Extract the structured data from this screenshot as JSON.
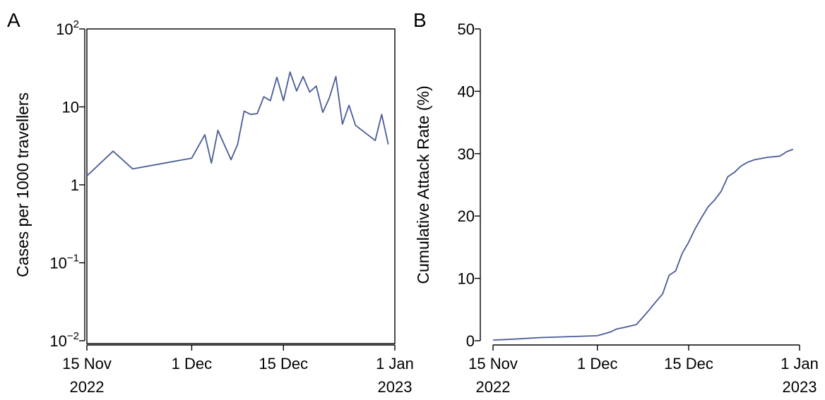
{
  "chart_data": [
    {
      "panel_label": "A",
      "type": "line",
      "ylabel": "Cases per 1000 travellers",
      "xlabel": "",
      "yscale": "log",
      "ylim": [
        0.01,
        100
      ],
      "yticks": [
        {
          "value": 0.01,
          "base": "10",
          "exp": "−2",
          "label": ""
        },
        {
          "value": 0.1,
          "base": "10",
          "exp": "−1",
          "label": ""
        },
        {
          "value": 1,
          "base": "",
          "exp": "",
          "label": "1"
        },
        {
          "value": 10,
          "base": "",
          "exp": "",
          "label": "10"
        },
        {
          "value": 100,
          "base": "10",
          "exp": "2",
          "label": ""
        }
      ],
      "xlim": [
        "2022-11-15",
        "2023-01-01"
      ],
      "xticks": [
        {
          "date": "2022-11-15",
          "line1": "15 Nov",
          "line2": "2022"
        },
        {
          "date": "2022-12-01",
          "line1": "1 Dec",
          "line2": ""
        },
        {
          "date": "2022-12-15",
          "line1": "15 Dec",
          "line2": ""
        },
        {
          "date": "2023-01-01",
          "line1": "1 Jan",
          "line2": "2023"
        }
      ],
      "grid": false,
      "series": [
        {
          "color": "#4a5c96",
          "x": [
            "2022-11-15",
            "2022-11-19",
            "2022-11-22",
            "2022-12-01",
            "2022-12-03",
            "2022-12-04",
            "2022-12-05",
            "2022-12-07",
            "2022-12-08",
            "2022-12-09",
            "2022-12-10",
            "2022-12-11",
            "2022-12-12",
            "2022-12-13",
            "2022-12-14",
            "2022-12-15",
            "2022-12-16",
            "2022-12-17",
            "2022-12-18",
            "2022-12-19",
            "2022-12-20",
            "2022-12-21",
            "2022-12-22",
            "2022-12-23",
            "2022-12-24",
            "2022-12-25",
            "2022-12-26",
            "2022-12-27",
            "2022-12-29",
            "2022-12-30",
            "2022-12-31"
          ],
          "values": [
            1.3,
            2.7,
            1.6,
            2.2,
            4.4,
            1.9,
            5.0,
            2.1,
            3.3,
            8.8,
            8.0,
            8.2,
            13.5,
            12.0,
            24.0,
            12.0,
            28.0,
            16.0,
            24.5,
            15.5,
            18.5,
            8.5,
            13.0,
            24.5,
            6.0,
            10.5,
            5.8,
            5.0,
            3.7,
            8.0,
            3.3
          ]
        }
      ]
    },
    {
      "panel_label": "B",
      "type": "line",
      "ylabel": "Cumulative Attack Rate (%)",
      "xlabel": "",
      "yscale": "linear",
      "ylim": [
        0,
        50
      ],
      "yticks": [
        {
          "value": 0,
          "label": "0"
        },
        {
          "value": 10,
          "label": "10"
        },
        {
          "value": 20,
          "label": "20"
        },
        {
          "value": 30,
          "label": "30"
        },
        {
          "value": 40,
          "label": "40"
        },
        {
          "value": 50,
          "label": "50"
        }
      ],
      "xlim": [
        "2022-11-15",
        "2023-01-01"
      ],
      "xticks": [
        {
          "date": "2022-11-15",
          "line1": "15 Nov",
          "line2": "2022"
        },
        {
          "date": "2022-12-01",
          "line1": "1 Dec",
          "line2": ""
        },
        {
          "date": "2022-12-15",
          "line1": "15 Dec",
          "line2": ""
        },
        {
          "date": "2023-01-01",
          "line1": "1 Jan",
          "line2": "2023"
        }
      ],
      "grid": false,
      "series": [
        {
          "color": "#4a5c96",
          "x": [
            "2022-11-15",
            "2022-11-19",
            "2022-11-22",
            "2022-12-01",
            "2022-12-03",
            "2022-12-04",
            "2022-12-05",
            "2022-12-07",
            "2022-12-08",
            "2022-12-09",
            "2022-12-10",
            "2022-12-11",
            "2022-12-12",
            "2022-12-13",
            "2022-12-14",
            "2022-12-15",
            "2022-12-16",
            "2022-12-17",
            "2022-12-18",
            "2022-12-19",
            "2022-12-20",
            "2022-12-21",
            "2022-12-22",
            "2022-12-23",
            "2022-12-24",
            "2022-12-25",
            "2022-12-26",
            "2022-12-27",
            "2022-12-29",
            "2022-12-30",
            "2022-12-31"
          ],
          "values": [
            0.1,
            0.3,
            0.5,
            0.8,
            1.4,
            1.9,
            2.1,
            2.6,
            3.8,
            5.0,
            6.3,
            7.5,
            10.5,
            11.2,
            14.0,
            15.8,
            18.0,
            19.8,
            21.5,
            22.6,
            24.0,
            26.3,
            27.0,
            28.0,
            28.6,
            29.0,
            29.2,
            29.4,
            29.6,
            30.3,
            30.7
          ]
        }
      ]
    }
  ]
}
